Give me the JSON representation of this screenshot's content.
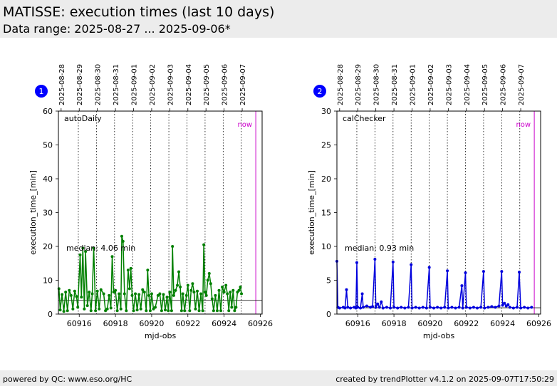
{
  "header": {
    "title": "MATISSE: execution times (last 10 days)",
    "subtitle": "Data range: 2025-08-27 ... 2025-09-06*"
  },
  "footer": {
    "left": "powered by QC: www.eso.org/HC",
    "right": "created by trendPlotter v4.1.2 on 2025-09-07T17:50:29"
  },
  "colors": {
    "series1": "#008000",
    "series2": "#0000dd",
    "now": "#cc00cc",
    "badge": "#0000ff"
  },
  "chart_data": [
    {
      "type": "line",
      "badge": "1",
      "series_label": "autoDaily",
      "now_label": "now",
      "median_label": "median: 4.06 min",
      "median": 4.06,
      "xlabel": "mjd-obs",
      "ylabel": "execution_time_[min]",
      "xlim": [
        60914.85,
        60926.1
      ],
      "ylim": [
        0,
        60
      ],
      "xticks": [
        60916,
        60918,
        60920,
        60922,
        60924,
        60926
      ],
      "yticks": [
        0,
        10,
        20,
        30,
        40,
        50,
        60
      ],
      "now_x": 60925.75,
      "date_ticks": [
        {
          "x": 60915.0,
          "label": "2025-08-28"
        },
        {
          "x": 60916.0,
          "label": "2025-08-29"
        },
        {
          "x": 60917.0,
          "label": "2025-08-30"
        },
        {
          "x": 60918.0,
          "label": "2025-08-31"
        },
        {
          "x": 60919.0,
          "label": "2025-09-01"
        },
        {
          "x": 60920.0,
          "label": "2025-09-02"
        },
        {
          "x": 60921.0,
          "label": "2025-09-03"
        },
        {
          "x": 60922.0,
          "label": "2025-09-04"
        },
        {
          "x": 60923.0,
          "label": "2025-09-05"
        },
        {
          "x": 60924.0,
          "label": "2025-09-06"
        },
        {
          "x": 60925.0,
          "label": "2025-09-07"
        }
      ],
      "date_lines": [
        60915.95,
        60916.95,
        60917.95,
        60918.95,
        60919.95,
        60920.95,
        60921.95,
        60922.95,
        60923.95,
        60924.95
      ],
      "points": [
        [
          60914.88,
          7.5
        ],
        [
          60914.95,
          1.2
        ],
        [
          60915.05,
          5.8
        ],
        [
          60915.15,
          0.8
        ],
        [
          60915.25,
          6.5
        ],
        [
          60915.35,
          1.0
        ],
        [
          60915.45,
          7.0
        ],
        [
          60915.55,
          5.5
        ],
        [
          60915.65,
          1.5
        ],
        [
          60915.75,
          6.8
        ],
        [
          60915.85,
          5.2
        ],
        [
          60915.92,
          2.0
        ],
        [
          60916.05,
          17.5
        ],
        [
          60916.12,
          5.0
        ],
        [
          60916.2,
          19.5
        ],
        [
          60916.28,
          1.5
        ],
        [
          60916.35,
          18.5
        ],
        [
          60916.45,
          2.5
        ],
        [
          60916.55,
          6.5
        ],
        [
          60916.65,
          1.0
        ],
        [
          60916.72,
          6.0
        ],
        [
          60916.8,
          19.5
        ],
        [
          60916.9,
          1.0
        ],
        [
          60917.0,
          6.8
        ],
        [
          60917.1,
          1.5
        ],
        [
          60917.2,
          7.2
        ],
        [
          60917.35,
          6.0
        ],
        [
          60917.45,
          1.0
        ],
        [
          60917.55,
          1.5
        ],
        [
          60917.65,
          5.5
        ],
        [
          60917.75,
          1.8
        ],
        [
          60917.82,
          17.0
        ],
        [
          60917.9,
          6.5
        ],
        [
          60918.0,
          7.0
        ],
        [
          60918.1,
          1.0
        ],
        [
          60918.2,
          6.0
        ],
        [
          60918.3,
          1.5
        ],
        [
          60918.35,
          23.0
        ],
        [
          60918.42,
          21.5
        ],
        [
          60918.5,
          6.0
        ],
        [
          60918.6,
          1.0
        ],
        [
          60918.7,
          13.0
        ],
        [
          60918.78,
          7.5
        ],
        [
          60918.85,
          13.5
        ],
        [
          60918.92,
          5.5
        ],
        [
          60919.0,
          1.0
        ],
        [
          60919.1,
          6.0
        ],
        [
          60919.2,
          1.2
        ],
        [
          60919.3,
          5.8
        ],
        [
          60919.4,
          1.5
        ],
        [
          60919.5,
          7.2
        ],
        [
          60919.6,
          6.5
        ],
        [
          60919.7,
          1.0
        ],
        [
          60919.78,
          13.0
        ],
        [
          60919.85,
          5.5
        ],
        [
          60919.92,
          1.0
        ],
        [
          60920.0,
          6.0
        ],
        [
          60920.1,
          1.5
        ],
        [
          60920.2,
          2.0
        ],
        [
          60920.35,
          5.5
        ],
        [
          60920.45,
          6.0
        ],
        [
          60920.55,
          1.0
        ],
        [
          60920.65,
          5.8
        ],
        [
          60920.75,
          1.2
        ],
        [
          60920.85,
          5.0
        ],
        [
          60920.92,
          1.0
        ],
        [
          60921.0,
          6.5
        ],
        [
          60921.1,
          1.0
        ],
        [
          60921.15,
          20.0
        ],
        [
          60921.22,
          5.5
        ],
        [
          60921.32,
          7.0
        ],
        [
          60921.42,
          8.5
        ],
        [
          60921.5,
          12.5
        ],
        [
          60921.58,
          8.0
        ],
        [
          60921.65,
          1.0
        ],
        [
          60921.72,
          6.0
        ],
        [
          60921.82,
          1.0
        ],
        [
          60921.92,
          5.5
        ],
        [
          60922.0,
          8.5
        ],
        [
          60922.1,
          1.0
        ],
        [
          60922.18,
          7.0
        ],
        [
          60922.26,
          9.0
        ],
        [
          60922.34,
          6.5
        ],
        [
          60922.42,
          1.5
        ],
        [
          60922.52,
          6.8
        ],
        [
          60922.62,
          1.0
        ],
        [
          60922.72,
          6.0
        ],
        [
          60922.82,
          1.0
        ],
        [
          60922.88,
          20.5
        ],
        [
          60922.95,
          6.5
        ],
        [
          60923.02,
          5.5
        ],
        [
          60923.1,
          10.0
        ],
        [
          60923.18,
          12.0
        ],
        [
          60923.26,
          9.0
        ],
        [
          60923.34,
          4.5
        ],
        [
          60923.42,
          1.0
        ],
        [
          60923.52,
          5.5
        ],
        [
          60923.62,
          1.0
        ],
        [
          60923.72,
          7.0
        ],
        [
          60923.82,
          1.0
        ],
        [
          60923.9,
          8.0
        ],
        [
          60924.0,
          6.5
        ],
        [
          60924.1,
          8.5
        ],
        [
          60924.18,
          6.0
        ],
        [
          60924.26,
          1.0
        ],
        [
          60924.34,
          6.5
        ],
        [
          60924.42,
          2.0
        ],
        [
          60924.5,
          7.0
        ],
        [
          60924.58,
          1.0
        ],
        [
          60924.66,
          2.0
        ],
        [
          60924.74,
          6.5
        ],
        [
          60924.82,
          7.0
        ],
        [
          60924.9,
          8.0
        ],
        [
          60924.96,
          6.0
        ]
      ]
    },
    {
      "type": "line",
      "badge": "2",
      "series_label": "calChecker",
      "now_label": "now",
      "median_label": "median: 0.93 min",
      "median": 0.93,
      "xlabel": "mjd-obs",
      "ylabel": "execution_time_[min]",
      "xlim": [
        60914.85,
        60926.1
      ],
      "ylim": [
        0,
        30
      ],
      "xticks": [
        60916,
        60918,
        60920,
        60922,
        60924,
        60926
      ],
      "yticks": [
        0,
        5,
        10,
        15,
        20,
        25,
        30
      ],
      "now_x": 60925.75,
      "date_ticks": [
        {
          "x": 60915.0,
          "label": "2025-08-28"
        },
        {
          "x": 60916.0,
          "label": "2025-08-29"
        },
        {
          "x": 60917.0,
          "label": "2025-08-30"
        },
        {
          "x": 60918.0,
          "label": "2025-08-31"
        },
        {
          "x": 60919.0,
          "label": "2025-09-01"
        },
        {
          "x": 60920.0,
          "label": "2025-09-02"
        },
        {
          "x": 60921.0,
          "label": "2025-09-03"
        },
        {
          "x": 60922.0,
          "label": "2025-09-04"
        },
        {
          "x": 60923.0,
          "label": "2025-09-05"
        },
        {
          "x": 60924.0,
          "label": "2025-09-06"
        },
        {
          "x": 60925.0,
          "label": "2025-09-07"
        }
      ],
      "date_lines": [
        60915.95,
        60916.95,
        60917.95,
        60918.95,
        60919.95,
        60920.95,
        60921.95,
        60922.95,
        60923.95,
        60924.95
      ],
      "points": [
        [
          60914.85,
          7.8
        ],
        [
          60914.9,
          1.0
        ],
        [
          60915.0,
          0.9
        ],
        [
          60915.2,
          1.0
        ],
        [
          60915.3,
          0.9
        ],
        [
          60915.38,
          3.6
        ],
        [
          60915.45,
          1.0
        ],
        [
          60915.6,
          0.9
        ],
        [
          60915.8,
          1.0
        ],
        [
          60915.9,
          0.9
        ],
        [
          60915.95,
          7.6
        ],
        [
          60916.0,
          1.0
        ],
        [
          60916.15,
          0.9
        ],
        [
          60916.25,
          3.0
        ],
        [
          60916.3,
          1.0
        ],
        [
          60916.5,
          1.2
        ],
        [
          60916.7,
          1.0
        ],
        [
          60916.82,
          1.1
        ],
        [
          60916.95,
          8.1
        ],
        [
          60917.0,
          1.0
        ],
        [
          60917.1,
          1.5
        ],
        [
          60917.2,
          1.0
        ],
        [
          60917.3,
          1.8
        ],
        [
          60917.4,
          0.9
        ],
        [
          60917.6,
          1.0
        ],
        [
          60917.8,
          0.9
        ],
        [
          60917.95,
          7.7
        ],
        [
          60918.0,
          1.0
        ],
        [
          60918.2,
          0.9
        ],
        [
          60918.4,
          1.0
        ],
        [
          60918.6,
          0.9
        ],
        [
          60918.8,
          1.0
        ],
        [
          60918.95,
          7.3
        ],
        [
          60919.0,
          0.9
        ],
        [
          60919.2,
          1.0
        ],
        [
          60919.4,
          0.9
        ],
        [
          60919.6,
          1.0
        ],
        [
          60919.8,
          0.9
        ],
        [
          60919.95,
          6.9
        ],
        [
          60920.0,
          1.0
        ],
        [
          60920.2,
          0.9
        ],
        [
          60920.4,
          1.0
        ],
        [
          60920.6,
          0.9
        ],
        [
          60920.8,
          1.0
        ],
        [
          60920.95,
          6.4
        ],
        [
          60921.0,
          0.9
        ],
        [
          60921.2,
          1.0
        ],
        [
          60921.4,
          0.9
        ],
        [
          60921.6,
          1.0
        ],
        [
          60921.75,
          4.2
        ],
        [
          60921.8,
          0.9
        ],
        [
          60921.95,
          6.1
        ],
        [
          60922.0,
          1.0
        ],
        [
          60922.2,
          0.9
        ],
        [
          60922.4,
          1.0
        ],
        [
          60922.6,
          0.9
        ],
        [
          60922.8,
          1.0
        ],
        [
          60922.95,
          6.3
        ],
        [
          60923.0,
          0.9
        ],
        [
          60923.2,
          1.0
        ],
        [
          60923.4,
          1.1
        ],
        [
          60923.6,
          1.0
        ],
        [
          60923.8,
          1.2
        ],
        [
          60923.95,
          6.3
        ],
        [
          60924.0,
          1.3
        ],
        [
          60924.1,
          1.6
        ],
        [
          60924.2,
          1.2
        ],
        [
          60924.3,
          1.4
        ],
        [
          60924.4,
          1.0
        ],
        [
          60924.6,
          0.9
        ],
        [
          60924.8,
          1.0
        ],
        [
          60924.92,
          6.2
        ],
        [
          60925.0,
          0.9
        ],
        [
          60925.2,
          1.0
        ],
        [
          60925.4,
          0.9
        ],
        [
          60925.6,
          1.0
        ]
      ]
    }
  ]
}
